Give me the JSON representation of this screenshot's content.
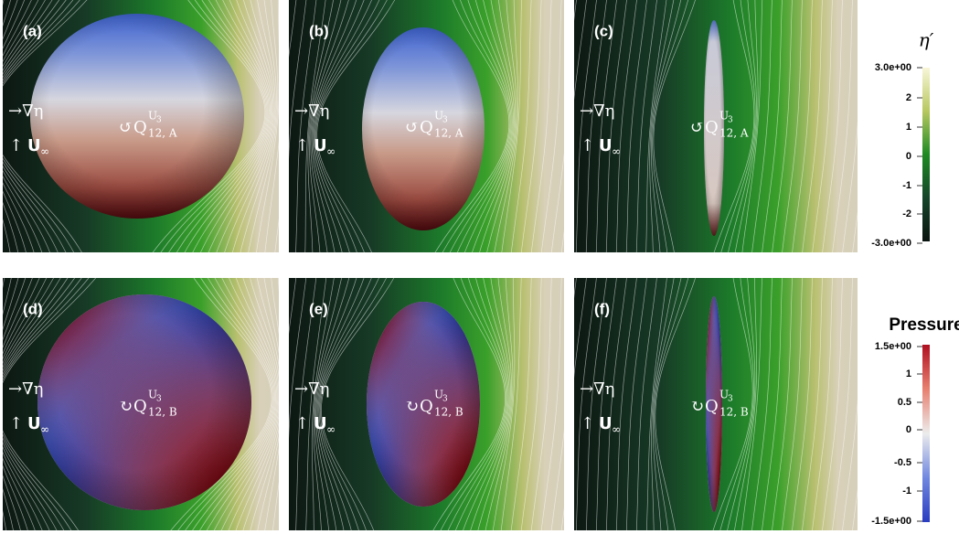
{
  "panels": [
    {
      "label": "(a)",
      "gradient": "→∇η",
      "flow": {
        "arrow": "↑",
        "symbol": "U",
        "subscript": "∞"
      },
      "mode": {
        "rotation": "↺",
        "symbol": "Q",
        "superscript": "U",
        "superscript_subscript": "3",
        "subscript": "12, A"
      }
    },
    {
      "label": "(b)",
      "gradient": "→∇η",
      "flow": {
        "arrow": "↑",
        "symbol": "U",
        "subscript": "∞"
      },
      "mode": {
        "rotation": "↺",
        "symbol": "Q",
        "superscript": "U",
        "superscript_subscript": "3",
        "subscript": "12, A"
      }
    },
    {
      "label": "(c)",
      "gradient": "→∇η",
      "flow": {
        "arrow": "↑",
        "symbol": "U",
        "subscript": "∞"
      },
      "mode": {
        "rotation": "↺",
        "symbol": "Q",
        "superscript": "U",
        "superscript_subscript": "3",
        "subscript": "12, A"
      }
    },
    {
      "label": "(d)",
      "gradient": "→∇η",
      "flow": {
        "arrow": "↑",
        "symbol": "U",
        "subscript": "∞"
      },
      "mode": {
        "rotation": "↻",
        "symbol": "Q",
        "superscript": "U",
        "superscript_subscript": "3",
        "subscript": "12, B"
      }
    },
    {
      "label": "(e)",
      "gradient": "→∇η",
      "flow": {
        "arrow": "↑",
        "symbol": "U",
        "subscript": "∞"
      },
      "mode": {
        "rotation": "↻",
        "symbol": "Q",
        "superscript": "U",
        "superscript_subscript": "3",
        "subscript": "12, B"
      }
    },
    {
      "label": "(f)",
      "gradient": "→∇η",
      "flow": {
        "arrow": "↑",
        "symbol": "U",
        "subscript": "∞"
      },
      "mode": {
        "rotation": "↻",
        "symbol": "Q",
        "superscript": "U",
        "superscript_subscript": "3",
        "subscript": "12, B"
      }
    }
  ],
  "colorbars": [
    {
      "title": "η′",
      "ticks": [
        "3.0e+00",
        "2",
        "1",
        "0",
        "-1",
        "-2",
        "-3.0e+00"
      ]
    },
    {
      "title": "Pressure",
      "ticks": [
        "1.5e+00",
        "1",
        "0.5",
        "0",
        "-0.5",
        "-1",
        "-1.5e+00"
      ]
    }
  ]
}
